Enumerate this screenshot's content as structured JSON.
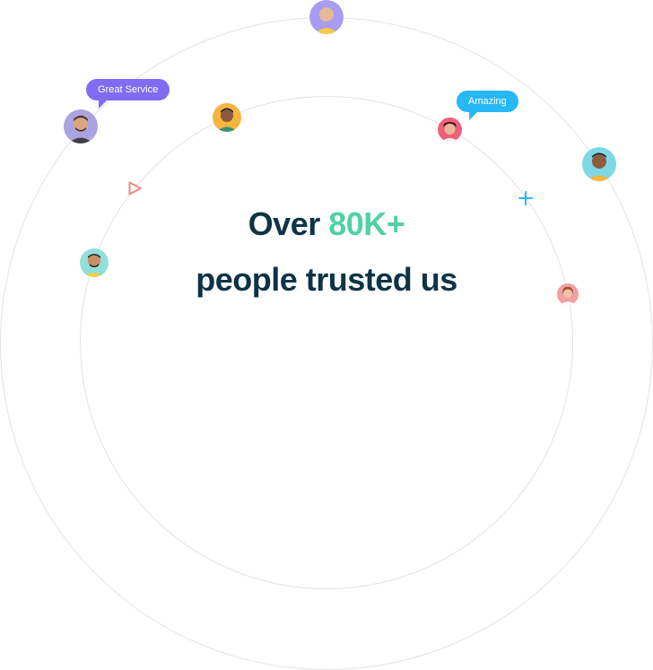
{
  "headline": {
    "prefix": "Over",
    "count": "80K+",
    "suffix": "people trusted us"
  },
  "bubbles": {
    "great_service": "Great Service",
    "amazing": "Amazing"
  },
  "colors": {
    "headline": "#0d3446",
    "accent": "#4fd1a5",
    "bubble_purple": "#7f6cf3",
    "bubble_blue": "#27b7f5",
    "play_triangle": "#f08a8a",
    "plus_sign": "#27b7f5"
  },
  "icons": {
    "play": "play-triangle-icon",
    "plus": "plus-icon"
  }
}
